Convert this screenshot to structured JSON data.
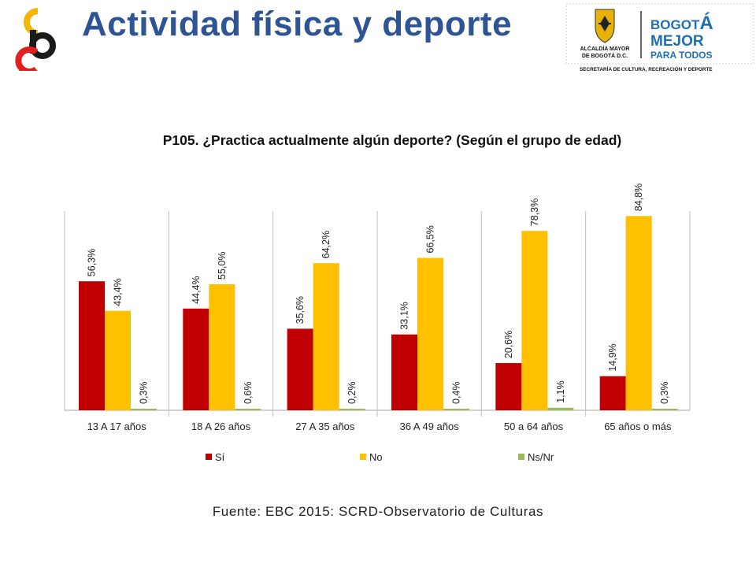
{
  "header": {
    "title": "Actividad física y deporte",
    "logo": {
      "mark": "SCRD logo",
      "colors": [
        "#f2b705",
        "#e02020",
        "#1a1a1a"
      ]
    },
    "institution": {
      "office_line1": "ALCALDÍA MAYOR",
      "office_line2": "DE BOGOTÁ D.C.",
      "brand_line1_part1": "BOGOT",
      "brand_line1_part2": "Á",
      "brand_line2": "MEJOR",
      "brand_line3": "PARA TODOS",
      "secretariat": "SECRETARÍA DE CULTURA, RECREACIÓN Y DEPORTE",
      "crest_icon": "coat-of-arms-icon",
      "brand_color": "#1f6fb2"
    }
  },
  "chart_data": {
    "type": "bar",
    "title": "P105. ¿Practica actualmente algún deporte? (Según el grupo de edad)",
    "categories": [
      "13 A 17 años",
      "18 A 26 años",
      "27 A 35 años",
      "36 A 49 años",
      "50 a 64 años",
      "65 años o más"
    ],
    "series": [
      {
        "name": "Sí",
        "color": "#c00000",
        "values": [
          56.3,
          44.4,
          35.6,
          33.1,
          20.6,
          14.9
        ],
        "labels": [
          "56,3%",
          "44,4%",
          "35,6%",
          "33,1%",
          "20,6%",
          "14,9%"
        ]
      },
      {
        "name": "No",
        "color": "#ffc000",
        "values": [
          43.4,
          55.0,
          64.2,
          66.5,
          78.3,
          84.8
        ],
        "labels": [
          "43,4%",
          "55,0%",
          "64,2%",
          "66,5%",
          "78,3%",
          "84,8%"
        ]
      },
      {
        "name": "Ns/Nr",
        "color": "#9bbb59",
        "values": [
          0.3,
          0.6,
          0.2,
          0.4,
          1.1,
          0.3
        ],
        "labels": [
          "0,3%",
          "0,6%",
          "0,2%",
          "0,4%",
          "1,1%",
          "0,3%"
        ]
      }
    ],
    "ylim": [
      0,
      90
    ],
    "grid": false,
    "legend": "bottom"
  },
  "source": "Fuente: EBC 2015: SCRD-Observatorio de Culturas"
}
